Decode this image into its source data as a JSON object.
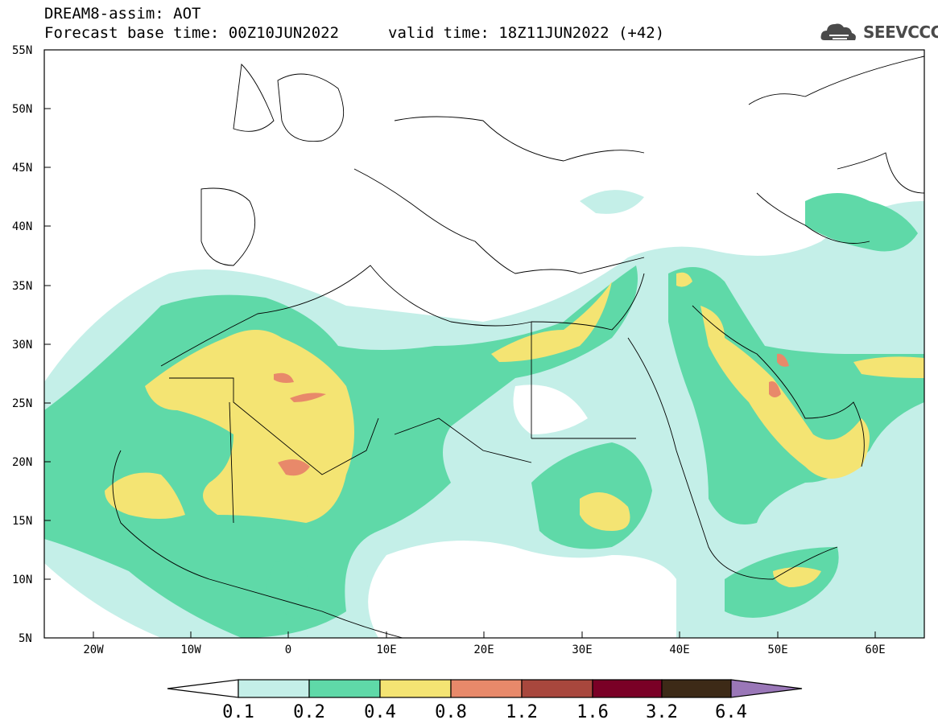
{
  "header": {
    "model_line": "DREAM8-assim: AOT",
    "base_time_line": "Forecast base time: 00Z10JUN2022",
    "valid_time_line": "valid time: 18Z11JUN2022 (+42)",
    "logo_text": "SEEVCCC"
  },
  "map": {
    "lat_labels": [
      "55N",
      "50N",
      "45N",
      "40N",
      "35N",
      "30N",
      "25N",
      "20N",
      "15N",
      "10N",
      "5N"
    ],
    "lon_labels": [
      "20W",
      "10W",
      "0",
      "10E",
      "20E",
      "30E",
      "40E",
      "50E",
      "60E"
    ],
    "lat_range": [
      5,
      55
    ],
    "lon_range": [
      -25,
      65
    ],
    "field": "Aerosol Optical Thickness"
  },
  "colorbar": {
    "levels": [
      "0.1",
      "0.2",
      "0.4",
      "0.8",
      "1.2",
      "1.6",
      "3.2",
      "6.4"
    ],
    "colors": [
      "#ffffff",
      "#c4efe8",
      "#5fd9a8",
      "#f4e473",
      "#e8896a",
      "#a8473d",
      "#7a0026",
      "#3d2a17",
      "#9a77b8"
    ]
  }
}
